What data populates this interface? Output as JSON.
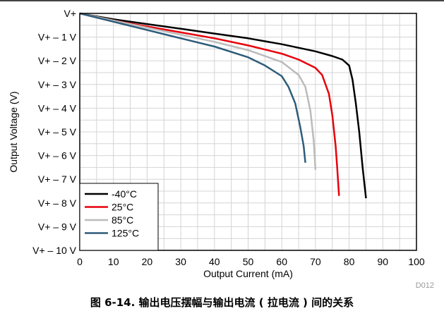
{
  "caption": "图 6-14. 输出电压摆幅与输出电流 ( 拉电流 ) 间的关系",
  "plot_id": "D012",
  "chart_data": {
    "type": "line",
    "xlabel": "Output Current (mA)",
    "ylabel": "Output Voltage (V)",
    "xlim": [
      0,
      100
    ],
    "ylim": [
      -10,
      0
    ],
    "x_ticks": [
      0,
      10,
      20,
      30,
      40,
      50,
      60,
      70,
      80,
      90,
      100
    ],
    "x_tick_labels": [
      "0",
      "10",
      "20",
      "30",
      "40",
      "50",
      "60",
      "70",
      "80",
      "90",
      "100"
    ],
    "y_ticks": [
      0,
      -1,
      -2,
      -3,
      -4,
      -5,
      -6,
      -7,
      -8,
      -9,
      -10
    ],
    "y_tick_labels": [
      "V+",
      "V+ – 1 V",
      "V+ – 2 V",
      "V+ – 3 V",
      "V+ – 4 V",
      "V+ – 5 V",
      "V+ – 6 V",
      "V+ – 7 V",
      "V+ – 8 V",
      "V+ – 9 V",
      "V+ – 10 V"
    ],
    "grid": true,
    "legend_position": "bottom-left",
    "series": [
      {
        "name": "-40°C",
        "color": "#000000",
        "points": [
          [
            0,
            0
          ],
          [
            10,
            -0.25
          ],
          [
            20,
            -0.45
          ],
          [
            30,
            -0.65
          ],
          [
            40,
            -0.85
          ],
          [
            50,
            -1.05
          ],
          [
            60,
            -1.3
          ],
          [
            70,
            -1.6
          ],
          [
            75,
            -1.8
          ],
          [
            78,
            -1.95
          ],
          [
            80,
            -2.2
          ],
          [
            81,
            -2.8
          ],
          [
            82,
            -3.8
          ],
          [
            83,
            -5.0
          ],
          [
            84,
            -6.5
          ],
          [
            85,
            -7.8
          ]
        ]
      },
      {
        "name": "25°C",
        "color": "#e8000b",
        "points": [
          [
            0,
            0
          ],
          [
            10,
            -0.3
          ],
          [
            20,
            -0.55
          ],
          [
            30,
            -0.8
          ],
          [
            40,
            -1.05
          ],
          [
            50,
            -1.35
          ],
          [
            60,
            -1.7
          ],
          [
            65,
            -1.95
          ],
          [
            70,
            -2.3
          ],
          [
            72,
            -2.6
          ],
          [
            74,
            -3.4
          ],
          [
            75,
            -4.3
          ],
          [
            76,
            -5.6
          ],
          [
            76.5,
            -6.6
          ],
          [
            77,
            -7.7
          ]
        ]
      },
      {
        "name": "85°C",
        "color": "#bbbbbb",
        "points": [
          [
            0,
            0
          ],
          [
            10,
            -0.3
          ],
          [
            20,
            -0.6
          ],
          [
            30,
            -0.9
          ],
          [
            40,
            -1.2
          ],
          [
            50,
            -1.55
          ],
          [
            60,
            -2.05
          ],
          [
            65,
            -2.6
          ],
          [
            67,
            -3.1
          ],
          [
            68.5,
            -4.1
          ],
          [
            69.5,
            -5.4
          ],
          [
            70,
            -6.6
          ]
        ]
      },
      {
        "name": "125°C",
        "color": "#2e5c7a",
        "points": [
          [
            0,
            0
          ],
          [
            10,
            -0.35
          ],
          [
            20,
            -0.7
          ],
          [
            30,
            -1.05
          ],
          [
            40,
            -1.4
          ],
          [
            50,
            -1.85
          ],
          [
            55,
            -2.2
          ],
          [
            60,
            -2.65
          ],
          [
            62,
            -3.1
          ],
          [
            64,
            -3.8
          ],
          [
            65.5,
            -4.8
          ],
          [
            66.5,
            -5.6
          ],
          [
            67,
            -6.3
          ]
        ]
      }
    ]
  }
}
